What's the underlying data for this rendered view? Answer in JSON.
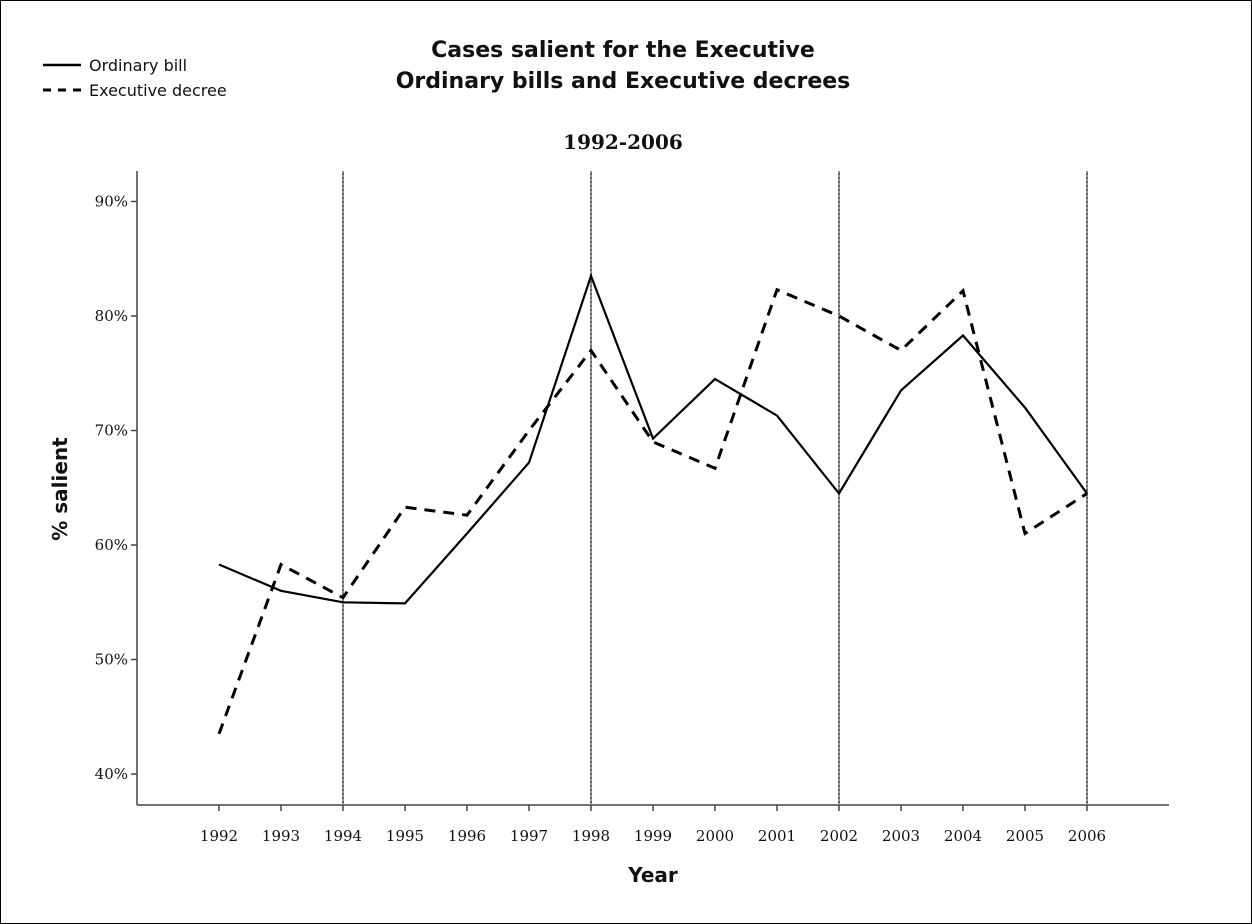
{
  "chart_data": {
    "type": "line",
    "title_line1": "Cases salient for the Executive",
    "title_line2": "Ordinary bills and Executive decrees",
    "subtitle": "1992-2006",
    "xlabel": "Year",
    "ylabel": "% salient",
    "categories": [
      "1992",
      "1993",
      "1994",
      "1995",
      "1996",
      "1997",
      "1998",
      "1999",
      "2000",
      "2001",
      "2002",
      "2003",
      "2004",
      "2005",
      "2006"
    ],
    "ylim": [
      40,
      90
    ],
    "y_ticks": [
      {
        "value": 40,
        "label": "40%"
      },
      {
        "value": 50,
        "label": "50%"
      },
      {
        "value": 60,
        "label": "60%"
      },
      {
        "value": 70,
        "label": "70%"
      },
      {
        "value": 80,
        "label": "80%"
      },
      {
        "value": 90,
        "label": "90%"
      }
    ],
    "reference_lines": [
      "1994",
      "1998",
      "2002",
      "2006"
    ],
    "legend_position": "top-left",
    "series": [
      {
        "name": "Ordinary bill",
        "style": "solid",
        "color": "#000000",
        "values": [
          58.3,
          56.0,
          55.0,
          54.9,
          61.0,
          67.2,
          83.5,
          69.3,
          74.5,
          71.3,
          64.5,
          73.5,
          78.3,
          72.0,
          64.5
        ]
      },
      {
        "name": "Executive decree",
        "style": "dashed",
        "color": "#000000",
        "values": [
          43.5,
          58.3,
          55.4,
          63.3,
          62.6,
          70.0,
          77.0,
          69.0,
          66.7,
          82.3,
          80.0,
          77.0,
          82.2,
          61.0,
          64.5
        ]
      }
    ]
  }
}
